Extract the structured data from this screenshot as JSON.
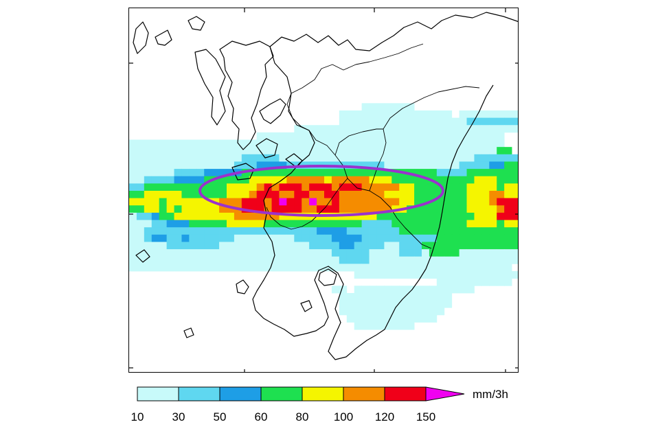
{
  "map": {
    "rain_colors": [
      "#c8fafa",
      "#5fd7f0",
      "#1e9ee6",
      "#1ee050",
      "#f5f500",
      "#f58c00",
      "#f00019",
      "#f000f0"
    ],
    "rain_grid": [
      "....................................................",
      "....................................................",
      "....................................................",
      "....................................................",
      "....................................................",
      "....................................................",
      "....................................................",
      "....................................................",
      "....................................................",
      "....................................................",
      "....................................................",
      "....................................................",
      "....................................................",
      "...............................0000000..............",
      "............................000000000000000.00000000",
      "............................000000000000000001111111",
      "......................000000000000000000000000000000",
      ".................000000000000000000000000000000000..",
      "00000000000000000000000000000000000000000000000000..",
      "000000000000000000000000000000000000000000000000033.",
      "0000000000000001111100000000000000000000000000111111",
      "00000000000000111222211111111111110000000000111122333",
      "0000001111222223333333333333333333333333311113333333",
      "0011112222333333444445555545555544433333333333444333",
      "1133333333333444456566656665666555554433333334444344",
      "3344444333333444566655665566555555444433333334445544",
      "4444344444445556665676657556555555554433333334445666",
      "3344343444445556665666655666555555544333333334444566",
      "0112334444444455555544444444444443333333333333444666",
      "0001122233333444443333333333333111133333333334444344",
      "0011111111111111111111111222211111113333333333333333",
      "0012211211111100000000111112222111111111133333333333",
      "0000011111110000000000001111221111001113333333333333",
      "0000000000000000000000000001111100001110333300000000",
      "0000000000000000000000000000111100000000000000000000",
      "000000000000000000000000000000000000000000000000000.",
      "..............................0000000000000000000000",
      ".........................................0000000000.",
      "...........................00.0000000000000000......",
      "............................000000000000000.........",
      "............................000000000000000.........",
      "............................00000000000000..........",
      ".............................000000000000...........",
      "..............................00000000..............",
      "....................................................",
      "....................................................",
      "....................................................",
      "....................................................",
      "....................................................",
      "...................................................."
    ],
    "coast_paths": [
      "M 20 20 L 28 36 L 24 54 L 12 66 L 6 50 L 10 30 Z",
      "M 38 42 L 56 32 L 62 46 L 52 54 L 42 52 Z",
      "M 86 18 L 98 12 L 110 20 L 104 32 L 92 30 Z",
      "M 96 64 L 112 60 L 126 74 L 140 100 L 132 120 L 140 150 L 128 170 L 120 158 L 122 130 L 110 110 L 100 88 Z",
      "M 132 60 L 150 48 L 170 54 L 190 48 L 205 56 L 210 70 L 198 82 L 200 100 L 192 118 L 186 140 L 178 160 L 184 180 L 176 196 L 166 206 L 158 196 L 160 176 L 150 164 L 152 146 L 144 128 L 150 108 L 140 90 L 138 72 Z",
      "M 205 56 L 222 42 L 240 48 L 258 38 L 275 50 L 290 40 L 305 54 L 318 46 L 330 60 L 350 62 L 368 50 L 385 40 L 400 28 L 420 20 L 440 30 L 455 18 L 475 10 L 500 14 L 520 6 L 545 12 L 568 20",
      "M 190 150 L 205 140 L 220 132 L 228 140 L 220 156 L 206 168 L 196 162 Z",
      "M 185 200 L 200 190 L 216 198 L 212 214 L 198 218 Z",
      "M 228 220 L 240 212 L 252 222 L 244 232 Z",
      "M 150 232 L 170 226 L 182 234 L 176 248 L 158 250 Z",
      "M 205 56 L 212 80 L 230 100 L 236 124 L 232 150 L 244 170 L 262 178 L 270 196 L 262 214 L 248 226 L 236 240 L 220 252 L 204 262 L 196 280 L 200 300 L 196 320 L 208 340 L 212 360 L 206 378 L 196 396 L 186 412 L 180 424 L 184 440 L 196 452 L 210 460 L 226 468 L 240 478 L 258 474 L 272 470 L 284 462 L 290 450 L 284 430 L 276 410 L 270 396 L 276 382 L 290 376 L 304 386 L 312 402 L 306 420 L 300 438 L 308 458 L 298 480 L 290 500 L 300 512 L 316 508 L 330 496 L 346 484 L 360 476 L 372 468 L 380 452 L 388 436 L 398 424 L 412 410 L 422 396 L 432 380 L 440 360 L 446 340 L 452 318 L 456 296 L 460 272 L 464 248 L 470 226 L 478 206 L 488 188 L 500 168 L 510 150 L 520 128 L 530 112",
      "M 278 386 L 290 380 L 302 388 L 298 402 L 284 404 L 276 396 Z",
      "M 156 402 L 166 396 L 174 406 L 168 416 L 158 414 Z",
      "M 250 430 L 262 426 L 266 436 L 256 442 Z",
      "M 80 470 L 90 466 L 94 476 L 84 480 Z",
      "M 10 360 L 22 352 L 30 362 L 20 370 Z"
    ],
    "border_paths": [
      "M 236 124 L 252 116 L 270 104 L 280 88 L 296 82 L 312 90 L 330 82 L 350 78 L 372 72 L 392 66 L 410 58 L 428 52",
      "M 262 178 L 272 192 L 288 200 L 300 214 L 312 230 L 318 248 L 306 262 L 296 276 L 286 290 L 276 300 L 266 310 L 252 318 L 236 322 L 220 316 L 206 304 L 200 290",
      "M 318 248 L 332 262 L 350 266 L 366 276 L 380 290 L 390 306 L 402 320 L 414 332 L 426 344 L 440 350",
      "M 350 266 L 356 248 L 362 230 L 370 212 L 374 196 L 370 176 L 380 160 L 398 146 L 414 138 L 430 130 L 450 122 L 470 118 L 490 114 L 510 116",
      "M 300 214 L 306 196 L 320 186 L 340 180 L 360 176 L 370 176",
      "M 236 124 L 230 140 L 238 160 L 250 172 L 262 178"
    ],
    "ellipse": {
      "stroke": "#9a32cd"
    }
  },
  "colorbar": {
    "colors": [
      "#c8fafa",
      "#5fd7f0",
      "#1e9ee6",
      "#1ee050",
      "#f5f500",
      "#f58c00",
      "#f00019",
      "#f000f0"
    ],
    "labels": [
      "10",
      "30",
      "50",
      "60",
      "80",
      "100",
      "120",
      "150"
    ],
    "unit": "mm/3h"
  }
}
